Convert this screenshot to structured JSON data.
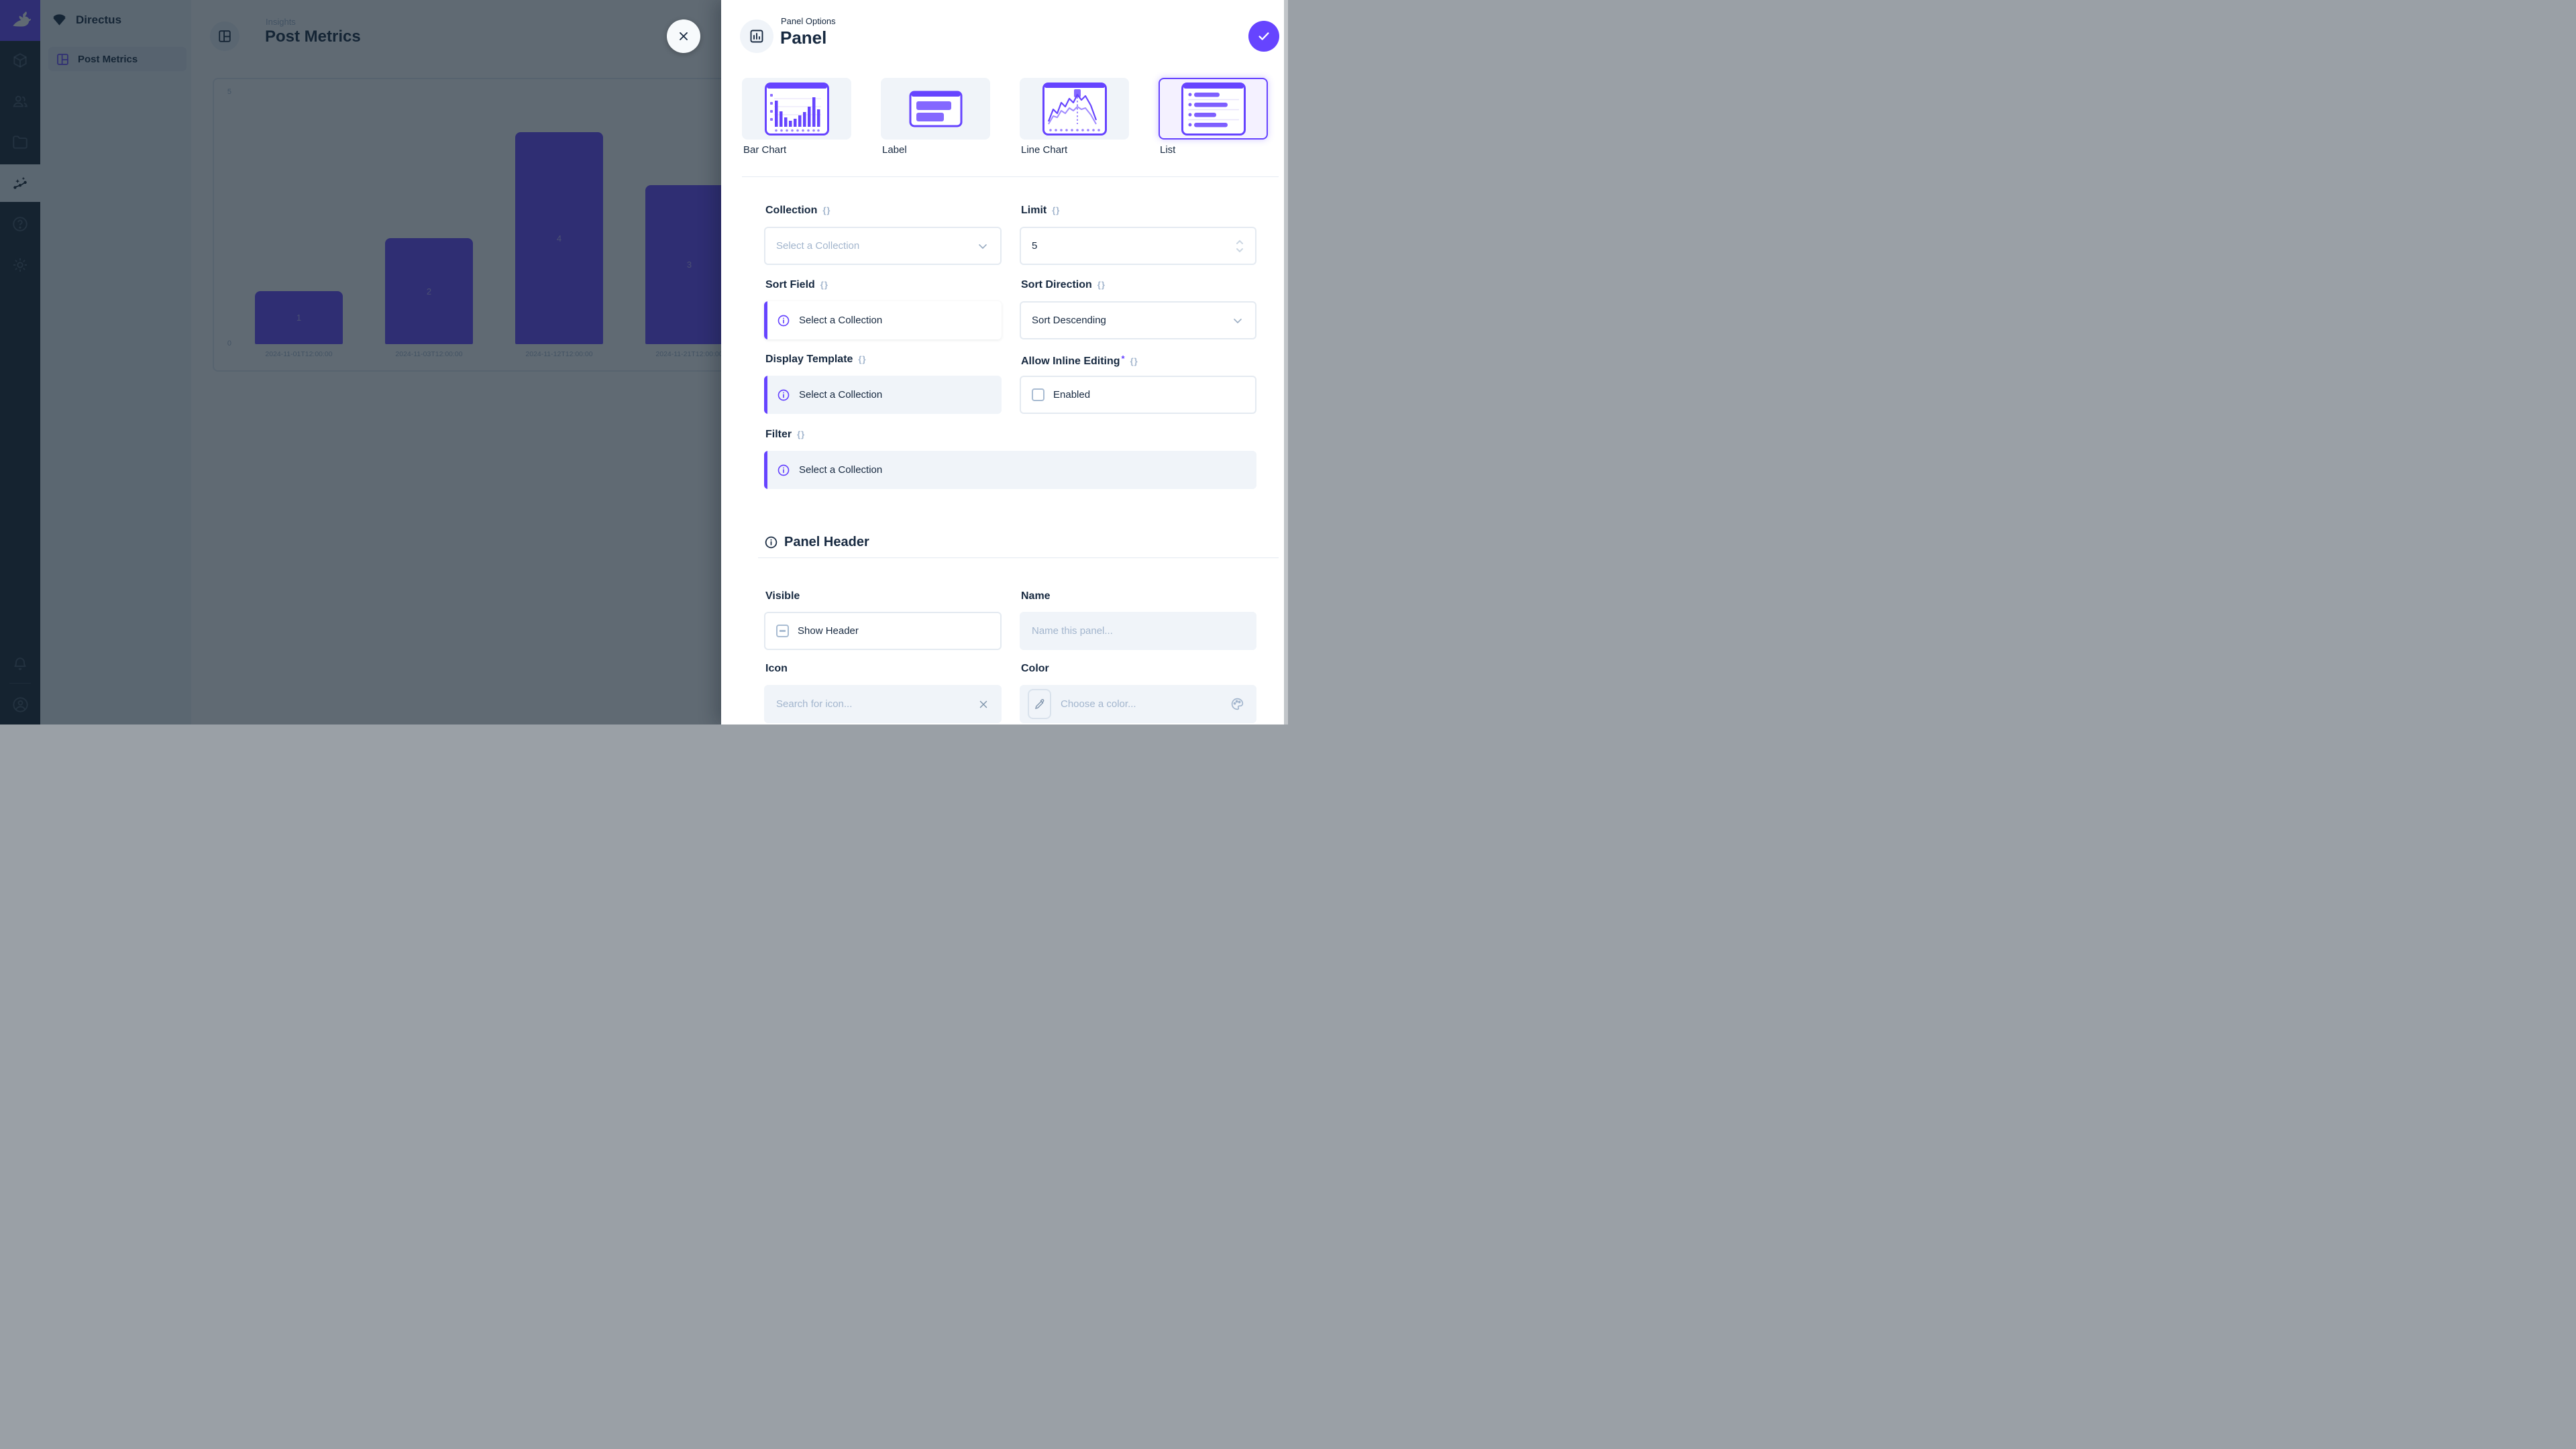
{
  "colors": {
    "accent": "#6644FF",
    "module_bar_bg": "#18232F",
    "overlay": "rgba(20,36,48,0.68)"
  },
  "icons": {
    "braces": "{}"
  },
  "module_bar": {
    "items": [
      "directus-logo",
      "box-icon",
      "users-icon",
      "folder-icon",
      "insights-icon",
      "help-icon",
      "settings-icon"
    ],
    "bottom_items": [
      "bell-icon",
      "account-icon"
    ],
    "active_item": "insights"
  },
  "sidebar": {
    "project_title": "Directus",
    "items": [
      {
        "label": "Post Metrics",
        "active": true
      }
    ]
  },
  "page": {
    "breadcrumb": "Insights",
    "title": "Post Metrics"
  },
  "chart_data": {
    "type": "bar",
    "title": "Post Metrics",
    "categories": [
      "2024-11-01T12:00:00",
      "2024-11-03T12:00:00",
      "2024-11-12T12:00:00",
      "2024-11-21T12:00:00"
    ],
    "values": [
      1,
      2,
      4,
      3
    ],
    "xlabel": "",
    "ylabel": "",
    "ylim": [
      0,
      5
    ],
    "yticks": [
      0,
      5
    ],
    "bar_color": "#6644FF",
    "grid": false,
    "legend": "none",
    "data_labels": "value centered inside each bar"
  },
  "drawer": {
    "kicker": "Panel Options",
    "title": "Panel",
    "types": [
      {
        "label": "Bar Chart",
        "selected": false
      },
      {
        "label": "Label",
        "selected": false
      },
      {
        "label": "Line Chart",
        "selected": false
      },
      {
        "label": "List",
        "selected": true
      }
    ],
    "fields": {
      "collection": {
        "label": "Collection",
        "placeholder": "Select a Collection"
      },
      "limit": {
        "label": "Limit",
        "value": "5"
      },
      "sort_field": {
        "label": "Sort Field",
        "notice": "Select a Collection"
      },
      "sort_direction": {
        "label": "Sort Direction",
        "value": "Sort Descending"
      },
      "display_template": {
        "label": "Display Template",
        "notice": "Select a Collection"
      },
      "allow_inline_editing": {
        "label": "Allow Inline Editing",
        "required": "*",
        "checkbox_label": "Enabled"
      },
      "filter": {
        "label": "Filter",
        "notice": "Select a Collection"
      }
    },
    "panel_header": {
      "section_title": "Panel Header",
      "visible": {
        "label": "Visible",
        "checkbox_label": "Show Header"
      },
      "name": {
        "label": "Name",
        "placeholder": "Name this panel..."
      },
      "icon": {
        "label": "Icon",
        "placeholder": "Search for icon..."
      },
      "color": {
        "label": "Color",
        "placeholder": "Choose a color..."
      }
    }
  }
}
